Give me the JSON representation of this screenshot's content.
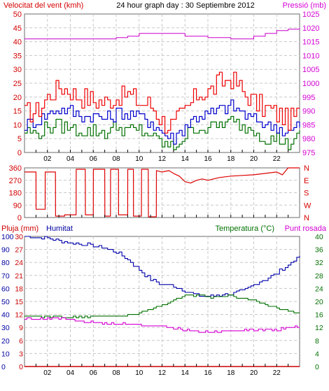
{
  "colors": {
    "frame": "#6b6b6b",
    "grid": "#c8c8c8",
    "wind_axis": "#d40000",
    "pressure_axis": "#d400d4",
    "humidity_axis": "#0000a0",
    "temperature_axis": "#007000",
    "rain": "#cc0000",
    "gust": "#ee0000",
    "avg_wind": "#0000cc",
    "min_wind": "#007000",
    "pressure": "#cc00cc",
    "direction": "#dd0000",
    "humidity": "#0000aa",
    "temperature": "#007000",
    "dewpoint": "#d400d4"
  },
  "chart_data": [
    {
      "type": "line",
      "title": "24 hour graph day : 30 Septiembre 2012",
      "ylabel": "Velocitat del vent (kmh)",
      "y2label": "Pressió (mb)",
      "xticks": [
        "02",
        "04",
        "06",
        "08",
        "10",
        "12",
        "14",
        "16",
        "18",
        "20",
        "22"
      ],
      "xlim": [
        0,
        24
      ],
      "ylim": [
        0,
        50
      ],
      "yticks": [
        0,
        5,
        10,
        15,
        20,
        25,
        30,
        35,
        40,
        45,
        50
      ],
      "y2lim": [
        975,
        1025
      ],
      "y2ticks": [
        975,
        980,
        985,
        990,
        995,
        1000,
        1005,
        1010,
        1015,
        1020,
        1025
      ],
      "grid": true,
      "series": [
        {
          "axis": "left",
          "x": [
            0,
            1,
            2,
            3,
            4,
            5,
            6,
            7,
            8,
            9,
            10,
            11,
            12,
            13,
            14,
            15,
            16,
            17,
            18,
            19,
            20,
            21,
            22,
            23,
            24
          ],
          "values": [
            14,
            15,
            20,
            24,
            22,
            20,
            19,
            18,
            20,
            21,
            18,
            17,
            11,
            10,
            15,
            21,
            22,
            25,
            27,
            22,
            18,
            16,
            14,
            12,
            14
          ]
        },
        {
          "axis": "left",
          "x": [
            0,
            1,
            2,
            3,
            4,
            5,
            6,
            7,
            8,
            9,
            10,
            11,
            12,
            13,
            14,
            15,
            16,
            17,
            18,
            19,
            20,
            21,
            22,
            23,
            24
          ],
          "values": [
            10,
            11,
            14,
            16,
            15,
            13,
            13,
            12,
            14,
            14,
            13,
            11,
            7,
            5,
            10,
            13,
            14,
            15,
            17,
            14,
            12,
            10,
            9,
            7,
            10
          ]
        },
        {
          "axis": "left",
          "x": [
            0,
            1,
            2,
            3,
            4,
            5,
            6,
            7,
            8,
            9,
            10,
            11,
            12,
            13,
            14,
            15,
            16,
            17,
            18,
            19,
            20,
            21,
            22,
            23,
            24
          ],
          "values": [
            8,
            7,
            9,
            10,
            9,
            8,
            8,
            7,
            9,
            8,
            8,
            6,
            3,
            2,
            6,
            9,
            9,
            10,
            11,
            9,
            8,
            5,
            5,
            3,
            6
          ]
        },
        {
          "axis": "right",
          "x": [
            0,
            2,
            4,
            6,
            8,
            9,
            10,
            11,
            12,
            14,
            16,
            18,
            20,
            21,
            22,
            23,
            24
          ],
          "values": [
            1016,
            1016,
            1016,
            1016,
            1016.5,
            1017,
            1018,
            1018,
            1018,
            1017,
            1016.5,
            1016,
            1017,
            1018,
            1019,
            1019.5,
            1020
          ]
        }
      ]
    },
    {
      "type": "line",
      "yticks": [
        0,
        90,
        180,
        270,
        360
      ],
      "y2ticks": [
        "N",
        "W",
        "S",
        "E",
        "N"
      ],
      "ylim": [
        0,
        360
      ],
      "xlim": [
        0,
        24
      ],
      "grid": true,
      "series": [
        {
          "x": [
            0,
            1.0,
            1.01,
            1.8,
            1.81,
            2.7,
            2.71,
            3.5,
            3.51,
            4.5,
            4.51,
            5.3,
            5.31,
            6.0,
            6.01,
            7.0,
            7.01,
            7.5,
            7.51,
            8.2,
            8.21,
            9.0,
            9.01,
            9.5,
            9.51,
            10.2,
            10.21,
            10.8,
            10.81,
            11.5,
            11.51,
            12.0,
            12.6,
            13.0,
            13.5,
            14.0,
            14.5,
            15.0,
            15.5,
            16.0,
            17.0,
            18.0,
            19.0,
            20.0,
            21.0,
            22.0,
            22.5,
            23.0,
            23.5,
            24.0
          ],
          "values": [
            330,
            330,
            60,
            60,
            330,
            330,
            10,
            10,
            20,
            20,
            350,
            350,
            20,
            20,
            350,
            350,
            10,
            10,
            350,
            350,
            20,
            20,
            350,
            350,
            10,
            10,
            350,
            350,
            5,
            5,
            340,
            330,
            340,
            320,
            300,
            260,
            250,
            270,
            280,
            270,
            290,
            300,
            305,
            310,
            320,
            330,
            310,
            360,
            360,
            360
          ]
        }
      ]
    },
    {
      "type": "line",
      "ylabel": "Pluja (mm)",
      "ylabel2": "Humitat",
      "y2label": "Temperatura (°C)",
      "y2label2": "Punt rosada",
      "xticks": [
        "02",
        "04",
        "06",
        "08",
        "10",
        "12",
        "14",
        "16",
        "18",
        "20",
        "22"
      ],
      "xlim": [
        0,
        24
      ],
      "rain_ticks": [
        0,
        3,
        6,
        9,
        12,
        15,
        18,
        21,
        24,
        27,
        30
      ],
      "humidity_ticks": [
        0,
        10,
        20,
        30,
        40,
        50,
        60,
        70,
        80,
        90,
        100
      ],
      "temperature_ticks": [
        0,
        4,
        8,
        12,
        16,
        20,
        24,
        28,
        32,
        36,
        40
      ],
      "grid": true,
      "series": [
        {
          "axis": "rain",
          "x": [
            0,
            24
          ],
          "values": [
            0,
            0
          ]
        },
        {
          "axis": "humidity",
          "x": [
            0,
            2,
            3,
            4,
            5,
            6,
            7,
            8,
            9,
            10,
            11,
            12,
            13,
            14,
            15,
            16,
            17,
            18,
            19,
            20,
            21,
            22,
            23,
            24
          ],
          "values": [
            100,
            99,
            97,
            95,
            94,
            93,
            91,
            88,
            82,
            74,
            67,
            63,
            62,
            58,
            55,
            54,
            55,
            56,
            58,
            63,
            67,
            72,
            78,
            85
          ]
        },
        {
          "axis": "temperature",
          "x": [
            0,
            2,
            3,
            4,
            5,
            6,
            7,
            8,
            9,
            10,
            11,
            12,
            13,
            14,
            15,
            16,
            17,
            18,
            19,
            20,
            21,
            22,
            23,
            24
          ],
          "values": [
            15.5,
            15.3,
            15.2,
            15.2,
            15.3,
            15.4,
            15.5,
            15.5,
            15.7,
            16.5,
            17.5,
            18.8,
            20.5,
            21.8,
            21.9,
            21.3,
            21.6,
            21.8,
            21.0,
            20.3,
            19.0,
            18.0,
            17.0,
            16.5
          ]
        },
        {
          "axis": "temperature",
          "x": [
            0,
            2,
            3,
            4,
            5,
            6,
            7,
            8,
            9,
            10,
            11,
            12,
            13,
            14,
            15,
            16,
            17,
            18,
            19,
            20,
            21,
            22,
            23,
            24
          ],
          "values": [
            14.5,
            14.8,
            14.7,
            14.3,
            13.8,
            13.5,
            13.2,
            13.2,
            13.0,
            12.8,
            12.5,
            12.5,
            11.8,
            11.0,
            11.0,
            10.5,
            10.8,
            11.0,
            11.0,
            11.3,
            11.5,
            11.3,
            12.0,
            12.2
          ]
        }
      ]
    }
  ]
}
